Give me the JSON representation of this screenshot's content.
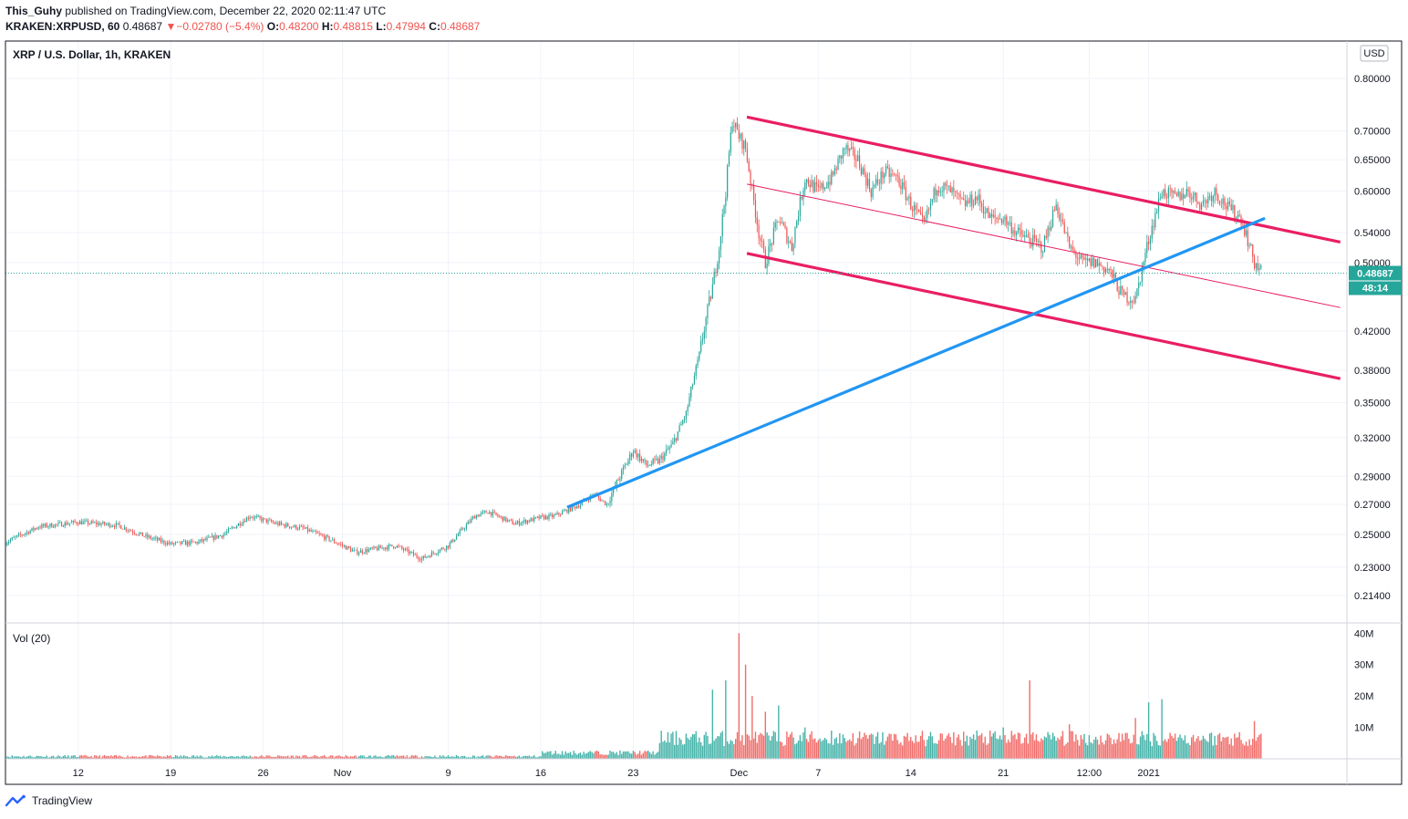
{
  "header": {
    "author": "This_Guhy",
    "published_text": "published on TradingView.com, December 22, 2020 02:11:47 UTC",
    "symbol": "KRAKEN:XRPUSD, 60",
    "last": "0.48687",
    "change_arrow": "▼",
    "change": "−0.02780 (−5.4%)",
    "o_label": "O:",
    "o": "0.48200",
    "h_label": "H:",
    "h": "0.48815",
    "l_label": "L:",
    "l": "0.47994",
    "c_label": "C:",
    "c": "0.48687"
  },
  "footer": {
    "brand": "TradingView",
    "logo_icon": "tradingview-logo-icon"
  },
  "colors": {
    "up": "#26a69a",
    "down": "#ef5350",
    "channel": "#e91e63",
    "trend": "#2196f3",
    "price_tag": "#26a69a",
    "grid": "#f0f3fa",
    "border": "#131722"
  },
  "chart_data": {
    "type": "candlestick",
    "title": "XRP / U.S. Dollar, 1h, KRAKEN",
    "currency_badge": "USD",
    "y_scale": "log",
    "y_ticks": [
      "0.80000",
      "0.70000",
      "0.65000",
      "0.60000",
      "0.54000",
      "0.50000",
      "0.42000",
      "0.38000",
      "0.35000",
      "0.32000",
      "0.29000",
      "0.27000",
      "0.25000",
      "0.23000",
      "0.21400"
    ],
    "y_tick_values": [
      0.8,
      0.7,
      0.65,
      0.6,
      0.54,
      0.5,
      0.42,
      0.38,
      0.35,
      0.32,
      0.29,
      0.27,
      0.25,
      0.23,
      0.214
    ],
    "x_ticks": [
      "12",
      "19",
      "26",
      "Nov",
      "9",
      "16",
      "23",
      "Dec",
      "7",
      "14",
      "21",
      "12:00",
      "2021"
    ],
    "x_tick_days": [
      0,
      7,
      14,
      20,
      28,
      35,
      42,
      50,
      56,
      63,
      70,
      76.5,
      81
    ],
    "x_range_days": [
      -5.5,
      96
    ],
    "y_range": [
      0.2,
      0.88
    ],
    "last_price": 0.48687,
    "last_price_label": "0.48687",
    "countdown_label": "48:14",
    "price_path": [
      [
        -5.5,
        0.245
      ],
      [
        -3,
        0.255
      ],
      [
        0,
        0.258
      ],
      [
        3,
        0.256
      ],
      [
        5,
        0.249
      ],
      [
        7,
        0.244
      ],
      [
        9,
        0.245
      ],
      [
        11,
        0.25
      ],
      [
        13,
        0.262
      ],
      [
        15,
        0.257
      ],
      [
        17,
        0.254
      ],
      [
        19,
        0.247
      ],
      [
        21,
        0.239
      ],
      [
        24,
        0.243
      ],
      [
        26,
        0.235
      ],
      [
        28,
        0.243
      ],
      [
        30,
        0.262
      ],
      [
        31,
        0.265
      ],
      [
        33,
        0.257
      ],
      [
        35,
        0.261
      ],
      [
        36,
        0.262
      ],
      [
        37,
        0.266
      ],
      [
        38,
        0.27
      ],
      [
        39,
        0.277
      ],
      [
        40,
        0.27
      ],
      [
        41,
        0.29
      ],
      [
        42,
        0.31
      ],
      [
        43,
        0.298
      ],
      [
        44,
        0.302
      ],
      [
        45,
        0.315
      ],
      [
        46,
        0.34
      ],
      [
        47,
        0.395
      ],
      [
        48,
        0.47
      ],
      [
        48.5,
        0.52
      ],
      [
        49,
        0.6
      ],
      [
        49.5,
        0.72
      ],
      [
        50,
        0.69
      ],
      [
        50.5,
        0.67
      ],
      [
        51,
        0.6
      ],
      [
        51.5,
        0.54
      ],
      [
        52,
        0.5
      ],
      [
        52.5,
        0.53
      ],
      [
        53,
        0.56
      ],
      [
        54,
        0.52
      ],
      [
        55,
        0.62
      ],
      [
        56,
        0.6
      ],
      [
        57,
        0.62
      ],
      [
        58,
        0.67
      ],
      [
        59,
        0.65
      ],
      [
        60,
        0.6
      ],
      [
        61,
        0.63
      ],
      [
        62,
        0.62
      ],
      [
        63,
        0.58
      ],
      [
        64,
        0.55
      ],
      [
        65,
        0.61
      ],
      [
        66,
        0.6
      ],
      [
        67,
        0.58
      ],
      [
        68,
        0.59
      ],
      [
        69,
        0.56
      ],
      [
        70,
        0.56
      ],
      [
        71,
        0.54
      ],
      [
        72,
        0.53
      ],
      [
        73,
        0.52
      ],
      [
        74,
        0.58
      ],
      [
        75,
        0.52
      ],
      [
        76,
        0.5
      ],
      [
        77,
        0.5
      ],
      [
        78,
        0.49
      ],
      [
        79,
        0.46
      ],
      [
        80,
        0.455
      ],
      [
        81,
        0.53
      ],
      [
        82,
        0.6
      ],
      [
        83,
        0.59
      ],
      [
        84,
        0.6
      ],
      [
        85,
        0.58
      ],
      [
        86,
        0.6
      ],
      [
        87,
        0.575
      ],
      [
        88,
        0.56
      ],
      [
        89,
        0.5
      ],
      [
        89.6,
        0.487
      ]
    ],
    "drawings": {
      "channel_upper": [
        [
          50.6,
          0.725
        ],
        [
          95.5,
          0.527
        ]
      ],
      "channel_mid": [
        [
          50.6,
          0.611
        ],
        [
          95.5,
          0.446
        ]
      ],
      "channel_lower": [
        [
          50.6,
          0.512
        ],
        [
          95.5,
          0.372
        ]
      ],
      "trend_line": [
        [
          37,
          0.268
        ],
        [
          89.8,
          0.56
        ]
      ]
    },
    "volume": {
      "label": "Vol (20)",
      "y_ticks": [
        "40M",
        "30M",
        "20M",
        "10M"
      ],
      "y_tick_values": [
        40,
        30,
        20,
        10
      ],
      "y_max": 43,
      "spikes": [
        [
          44,
          5
        ],
        [
          46,
          8
        ],
        [
          48,
          22
        ],
        [
          49,
          25
        ],
        [
          50,
          40
        ],
        [
          50.5,
          30
        ],
        [
          51,
          20
        ],
        [
          52,
          15
        ],
        [
          53,
          17
        ],
        [
          55,
          10
        ],
        [
          57,
          9
        ],
        [
          60,
          8
        ],
        [
          62,
          6
        ],
        [
          64,
          6
        ],
        [
          66,
          7
        ],
        [
          68,
          9
        ],
        [
          70,
          10
        ],
        [
          72,
          25
        ],
        [
          73,
          6
        ],
        [
          75,
          11
        ],
        [
          77,
          7
        ],
        [
          79,
          8
        ],
        [
          80,
          13
        ],
        [
          81,
          18
        ],
        [
          82,
          19
        ],
        [
          83,
          8
        ],
        [
          85,
          6
        ],
        [
          88,
          6
        ],
        [
          89,
          12
        ],
        [
          89.6,
          19
        ]
      ]
    }
  }
}
